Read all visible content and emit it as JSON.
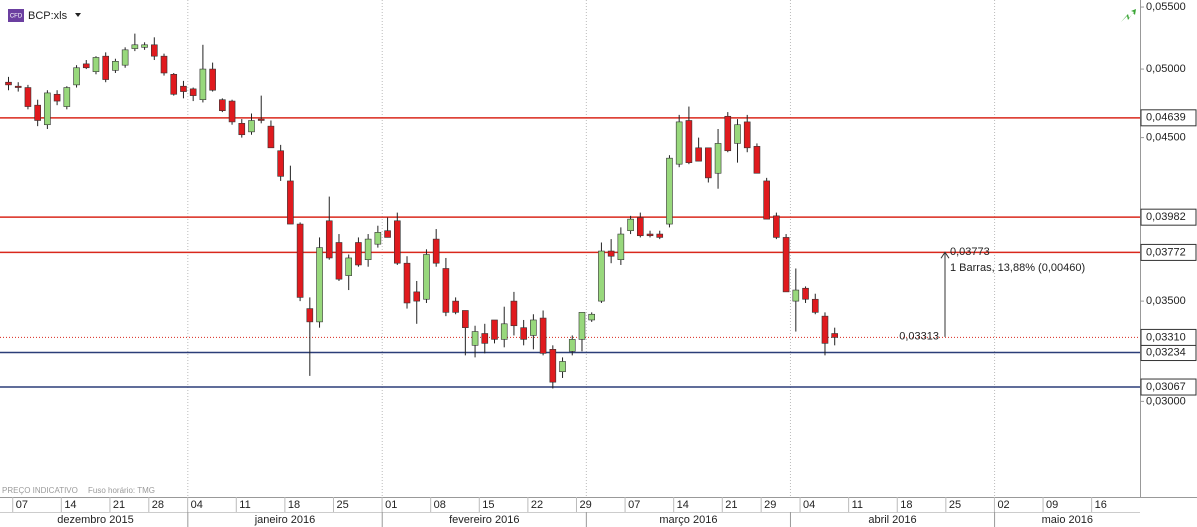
{
  "header": {
    "badge": "CFD",
    "symbol": "BCP:xls"
  },
  "chart_data": {
    "type": "candlestick",
    "title": "BCP:xls",
    "log_scale": true,
    "up_color": "#98d87c",
    "down_color": "#e01a1e",
    "categories": [
      "2015-12-04",
      "2015-12-07",
      "2015-12-08",
      "2015-12-09",
      "2015-12-10",
      "2015-12-11",
      "2015-12-14",
      "2015-12-15",
      "2015-12-16",
      "2015-12-17",
      "2015-12-18",
      "2015-12-21",
      "2015-12-22",
      "2015-12-23",
      "2015-12-24",
      "2015-12-28",
      "2015-12-29",
      "2015-12-30",
      "2015-12-31",
      "2016-01-04",
      "2016-01-05",
      "2016-01-06",
      "2016-01-07",
      "2016-01-08",
      "2016-01-11",
      "2016-01-12",
      "2016-01-13",
      "2016-01-14",
      "2016-01-15",
      "2016-01-18",
      "2016-01-19",
      "2016-01-20",
      "2016-01-21",
      "2016-01-22",
      "2016-01-25",
      "2016-01-26",
      "2016-01-27",
      "2016-01-28",
      "2016-01-29",
      "2016-02-01",
      "2016-02-02",
      "2016-02-03",
      "2016-02-04",
      "2016-02-05",
      "2016-02-08",
      "2016-02-09",
      "2016-02-10",
      "2016-02-11",
      "2016-02-12",
      "2016-02-15",
      "2016-02-16",
      "2016-02-17",
      "2016-02-18",
      "2016-02-19",
      "2016-02-22",
      "2016-02-23",
      "2016-02-24",
      "2016-02-25",
      "2016-02-26",
      "2016-02-29",
      "2016-03-01",
      "2016-03-02",
      "2016-03-03",
      "2016-03-04",
      "2016-03-07",
      "2016-03-08",
      "2016-03-09",
      "2016-03-10",
      "2016-03-11",
      "2016-03-14",
      "2016-03-15",
      "2016-03-16",
      "2016-03-17",
      "2016-03-18",
      "2016-03-21",
      "2016-03-22",
      "2016-03-23",
      "2016-03-24",
      "2016-03-29",
      "2016-03-30",
      "2016-03-31",
      "2016-04-01",
      "2016-04-04",
      "2016-04-05",
      "2016-04-06",
      "2016-04-07"
    ],
    "open": [
      0.049,
      0.0487,
      0.0486,
      0.0473,
      0.0459,
      0.0481,
      0.0472,
      0.0488,
      0.0504,
      0.0498,
      0.051,
      0.0499,
      0.0503,
      0.0516,
      0.0517,
      0.0519,
      0.051,
      0.0496,
      0.0487,
      0.0485,
      0.0477,
      0.05,
      0.0477,
      0.0476,
      0.046,
      0.0454,
      0.0463,
      0.0458,
      0.0441,
      0.0421,
      0.0394,
      0.0346,
      0.0339,
      0.0396,
      0.0383,
      0.0364,
      0.0383,
      0.0373,
      0.0382,
      0.039,
      0.0396,
      0.0371,
      0.0355,
      0.0351,
      0.0385,
      0.0368,
      0.035,
      0.0345,
      0.0327,
      0.0333,
      0.034,
      0.033,
      0.035,
      0.0336,
      0.0332,
      0.0341,
      0.0325,
      0.0314,
      0.0324,
      0.033,
      0.034,
      0.035,
      0.0378,
      0.0373,
      0.039,
      0.0398,
      0.0388,
      0.0388,
      0.0394,
      0.0432,
      0.0462,
      0.0443,
      0.0443,
      0.0426,
      0.0465,
      0.0446,
      0.0461,
      0.0444,
      0.0421,
      0.0399,
      0.0386,
      0.035,
      0.0357,
      0.0351,
      0.0342,
      0.0333
    ],
    "high": [
      0.0494,
      0.049,
      0.0488,
      0.0477,
      0.0484,
      0.0484,
      0.0487,
      0.0503,
      0.0507,
      0.051,
      0.0513,
      0.0508,
      0.0517,
      0.0528,
      0.0521,
      0.0525,
      0.0512,
      0.0497,
      0.0491,
      0.0486,
      0.0519,
      0.0505,
      0.0478,
      0.0477,
      0.0463,
      0.0467,
      0.048,
      0.0462,
      0.0445,
      0.0431,
      0.0395,
      0.0352,
      0.0386,
      0.0411,
      0.0388,
      0.0376,
      0.0386,
      0.0388,
      0.0393,
      0.0398,
      0.0401,
      0.0375,
      0.0361,
      0.0379,
      0.0391,
      0.0374,
      0.0352,
      0.0345,
      0.0337,
      0.0338,
      0.034,
      0.0347,
      0.0355,
      0.034,
      0.0343,
      0.0345,
      0.0327,
      0.0321,
      0.0332,
      0.0344,
      0.0344,
      0.0383,
      0.0385,
      0.0392,
      0.0399,
      0.0401,
      0.039,
      0.039,
      0.0438,
      0.0466,
      0.0472,
      0.045,
      0.0443,
      0.0456,
      0.0468,
      0.0463,
      0.0466,
      0.0446,
      0.0423,
      0.0401,
      0.0388,
      0.0368,
      0.0358,
      0.0354,
      0.0344,
      0.0336
    ],
    "low": [
      0.0484,
      0.0483,
      0.047,
      0.0458,
      0.0456,
      0.0473,
      0.047,
      0.0486,
      0.05,
      0.0496,
      0.049,
      0.0497,
      0.0501,
      0.0514,
      0.0515,
      0.0507,
      0.0495,
      0.048,
      0.0478,
      0.0476,
      0.0475,
      0.0483,
      0.0468,
      0.0459,
      0.045,
      0.0452,
      0.046,
      0.0443,
      0.0421,
      0.0394,
      0.035,
      0.0312,
      0.0336,
      0.0373,
      0.0361,
      0.0356,
      0.0369,
      0.0369,
      0.038,
      0.0386,
      0.037,
      0.0346,
      0.0338,
      0.0349,
      0.0369,
      0.0342,
      0.0343,
      0.0322,
      0.0321,
      0.0323,
      0.0328,
      0.0326,
      0.0332,
      0.0327,
      0.0325,
      0.0322,
      0.0306,
      0.0311,
      0.0322,
      0.0324,
      0.0339,
      0.0349,
      0.0371,
      0.037,
      0.0388,
      0.0386,
      0.0386,
      0.0385,
      0.0392,
      0.043,
      0.0432,
      0.0434,
      0.042,
      0.0416,
      0.044,
      0.0433,
      0.044,
      0.0426,
      0.0397,
      0.0385,
      0.0355,
      0.0334,
      0.0349,
      0.0343,
      0.0322,
      0.0327
    ],
    "close": [
      0.0488,
      0.0486,
      0.0472,
      0.0462,
      0.0482,
      0.0476,
      0.0486,
      0.0501,
      0.0501,
      0.0509,
      0.0492,
      0.0506,
      0.0515,
      0.0519,
      0.0519,
      0.051,
      0.0497,
      0.0481,
      0.0483,
      0.048,
      0.05,
      0.0484,
      0.0469,
      0.0461,
      0.0452,
      0.0462,
      0.0462,
      0.0443,
      0.0424,
      0.0394,
      0.0352,
      0.0339,
      0.038,
      0.0374,
      0.0362,
      0.0374,
      0.037,
      0.0385,
      0.0389,
      0.0386,
      0.0371,
      0.0349,
      0.035,
      0.0376,
      0.0371,
      0.0344,
      0.0344,
      0.0336,
      0.0334,
      0.0328,
      0.033,
      0.0338,
      0.0337,
      0.033,
      0.034,
      0.0323,
      0.0309,
      0.0319,
      0.033,
      0.0344,
      0.0343,
      0.0378,
      0.0375,
      0.0388,
      0.0397,
      0.0387,
      0.0387,
      0.0386,
      0.0436,
      0.0461,
      0.0433,
      0.0434,
      0.0423,
      0.0446,
      0.0441,
      0.0459,
      0.0443,
      0.0426,
      0.0397,
      0.0386,
      0.0355,
      0.0356,
      0.0351,
      0.0344,
      0.0328,
      0.0331
    ],
    "ylim": [
      0.0259,
      0.0556
    ],
    "yticks": [
      {
        "value": 0.055,
        "label": "0,05500"
      },
      {
        "value": 0.05,
        "label": "0,05000"
      },
      {
        "value": 0.045,
        "label": "0,04500"
      },
      {
        "value": 0.035,
        "label": "0,03500"
      },
      {
        "value": 0.03,
        "label": "0,03000"
      }
    ],
    "xticks": [
      {
        "value": "2015-12-07",
        "label": "07"
      },
      {
        "value": "2015-12-14",
        "label": "14"
      },
      {
        "value": "2015-12-21",
        "label": "21"
      },
      {
        "value": "2015-12-28",
        "label": "28"
      },
      {
        "value": "2016-01-04",
        "label": "04"
      },
      {
        "value": "2016-01-11",
        "label": "11"
      },
      {
        "value": "2016-01-18",
        "label": "18"
      },
      {
        "value": "2016-01-25",
        "label": "25"
      },
      {
        "value": "2016-02-01",
        "label": "01"
      },
      {
        "value": "2016-02-08",
        "label": "08"
      },
      {
        "value": "2016-02-15",
        "label": "15"
      },
      {
        "value": "2016-02-22",
        "label": "22"
      },
      {
        "value": "2016-02-29",
        "label": "29"
      },
      {
        "value": "2016-03-07",
        "label": "07"
      },
      {
        "value": "2016-03-14",
        "label": "14"
      },
      {
        "value": "2016-03-21",
        "label": "21"
      },
      {
        "value": "2016-03-29",
        "label": "29"
      },
      {
        "value": "2016-04-04",
        "label": "04"
      },
      {
        "value": "2016-04-11",
        "label": "11"
      },
      {
        "value": "2016-04-18",
        "label": "18"
      },
      {
        "value": "2016-04-25",
        "label": "25"
      },
      {
        "value": "2016-05-02",
        "label": "02"
      },
      {
        "value": "2016-05-09",
        "label": "09"
      },
      {
        "value": "2016-05-16",
        "label": "16"
      }
    ],
    "months": [
      {
        "value": "2015-12",
        "label": "dezembro 2015"
      },
      {
        "value": "2016-01",
        "label": "janeiro 2016"
      },
      {
        "value": "2016-02",
        "label": "fevereiro 2016"
      },
      {
        "value": "2016-03",
        "label": "março 2016"
      },
      {
        "value": "2016-04",
        "label": "abril 2016"
      },
      {
        "value": "2016-05",
        "label": "maio 2016"
      }
    ],
    "levels": [
      {
        "value": 0.04639,
        "label": "0,04639",
        "color": "#d9281c"
      },
      {
        "value": 0.03982,
        "label": "0,03982",
        "color": "#d9281c"
      },
      {
        "value": 0.03772,
        "label": "0,03772",
        "color": "#d9281c"
      },
      {
        "value": 0.03234,
        "label": "0,03234",
        "color": "#2b3d78"
      },
      {
        "value": 0.03067,
        "label": "0,03067",
        "color": "#2b3d78"
      }
    ],
    "price_line": {
      "value": 0.0331,
      "label": "0,03310",
      "color": "#d9281c"
    },
    "measure": {
      "from": {
        "value": 0.03313,
        "label": "0,03313"
      },
      "to": {
        "value": 0.03773,
        "label": "0,03773"
      },
      "text": "1 Barras, 13,88% (0,00460)"
    },
    "footnotes": [
      "PREÇO INDICATIVO",
      "Fuso horário: TMG"
    ]
  }
}
